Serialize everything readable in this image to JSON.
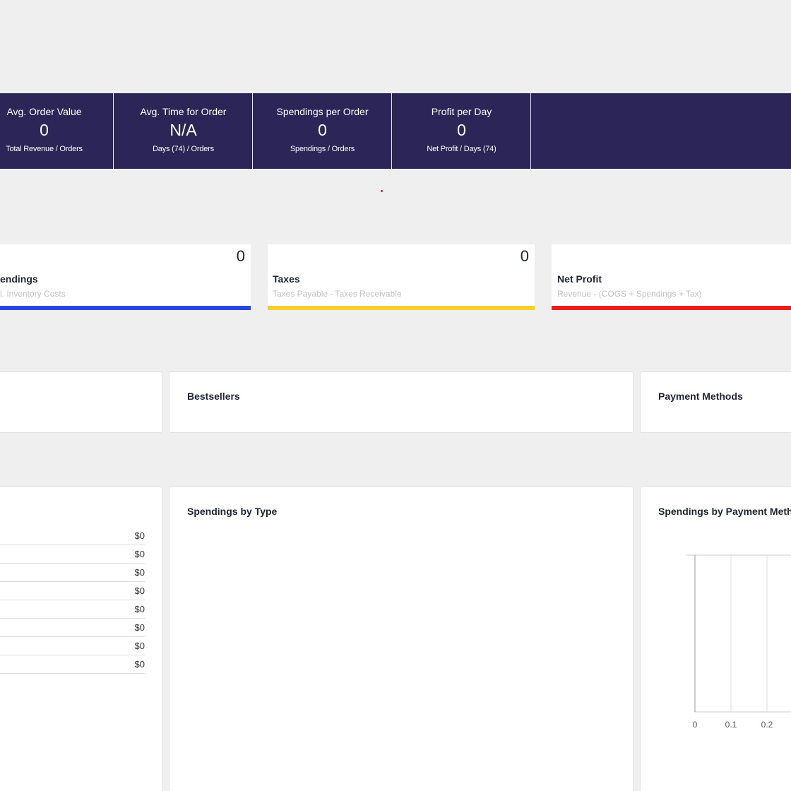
{
  "kpis": [
    {
      "title": "Avg. Order Value",
      "value": "0",
      "sub": "Total Revenue / Orders"
    },
    {
      "title": "Avg. Time for Order",
      "value": "N/A",
      "sub": "Days (74) / Orders"
    },
    {
      "title": "Spendings per Order",
      "value": "0",
      "sub": "Spendings / Orders"
    },
    {
      "title": "Profit per Day",
      "value": "0",
      "sub": "Net Profit / Days (74)"
    }
  ],
  "metrics": [
    {
      "title": "endings",
      "sub": "l. Inventory Costs",
      "value": "0",
      "color": "#2747e0"
    },
    {
      "title": "Taxes",
      "sub": "Taxes Payable - Taxes Receivable",
      "value": "0",
      "color": "#f7cf2a"
    },
    {
      "title": "Net Profit",
      "sub": "Revenue - (COGS + Spendings + Tax)",
      "value": "",
      "color": "#ee1c1c"
    }
  ],
  "panels": {
    "bestsellers": {
      "title": "Bestsellers"
    },
    "payment_methods": {
      "title": "Payment Methods"
    },
    "spendings_by_type": {
      "title": "Spendings by Type"
    },
    "spendings_by_payment": {
      "title": "Spendings by Payment Meth"
    }
  },
  "amounts": [
    "$0",
    "$0",
    "$0",
    "$0",
    "$0",
    "$0",
    "$0",
    "$0"
  ],
  "chart_data": {
    "type": "bar",
    "orientation": "horizontal",
    "categories": [],
    "values": [],
    "x_ticks": [
      "0",
      "0.1",
      "0.2"
    ],
    "grid": true
  }
}
